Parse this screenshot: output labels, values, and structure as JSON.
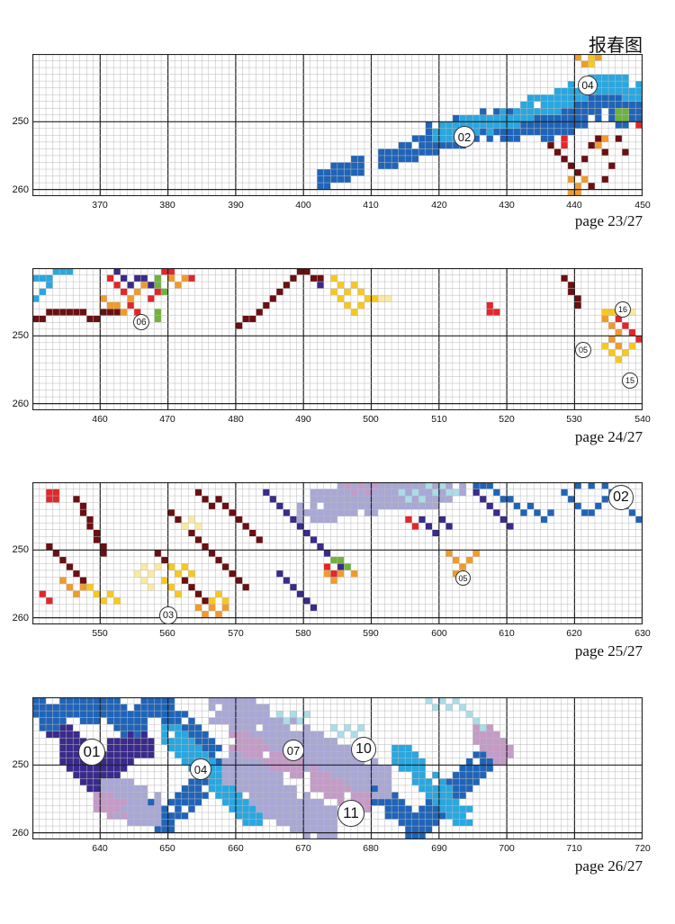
{
  "title": "报春图",
  "palette": {
    "dark_red": "#6b0f12",
    "red": "#e3262a",
    "orange": "#ef9b2d",
    "yellow": "#f7c81f",
    "pale_yellow": "#fbe9a0",
    "green": "#6fb33b",
    "navy": "#3a2a8c",
    "blue": "#1f64b8",
    "sky": "#28a7e0",
    "lavender": "#a9a7d6",
    "mauve": "#c59ac8",
    "light_teal": "#a9dde7"
  },
  "panels": [
    {
      "page": "page 23/27",
      "x_ticks": [
        "370",
        "380",
        "390",
        "400",
        "410",
        "420",
        "430",
        "440",
        "450"
      ],
      "y_ticks": [
        "250",
        "260"
      ],
      "badges": [
        "02",
        "04"
      ]
    },
    {
      "page": "page 24/27",
      "x_ticks": [
        "460",
        "470",
        "480",
        "490",
        "500",
        "510",
        "520",
        "530",
        "540"
      ],
      "y_ticks": [
        "250",
        "260"
      ],
      "badges": [
        "06",
        "16",
        "05",
        "15"
      ]
    },
    {
      "page": "page 25/27",
      "x_ticks": [
        "550",
        "560",
        "570",
        "580",
        "590",
        "600",
        "610",
        "620",
        "630"
      ],
      "y_ticks": [
        "250",
        "260"
      ],
      "badges": [
        "02",
        "03",
        "05"
      ]
    },
    {
      "page": "page 26/27",
      "x_ticks": [
        "640",
        "650",
        "660",
        "670",
        "680",
        "690",
        "700",
        "710",
        "720"
      ],
      "y_ticks": [
        "250",
        "260"
      ],
      "badges": [
        "01",
        "04",
        "07",
        "10",
        "11"
      ]
    }
  ]
}
